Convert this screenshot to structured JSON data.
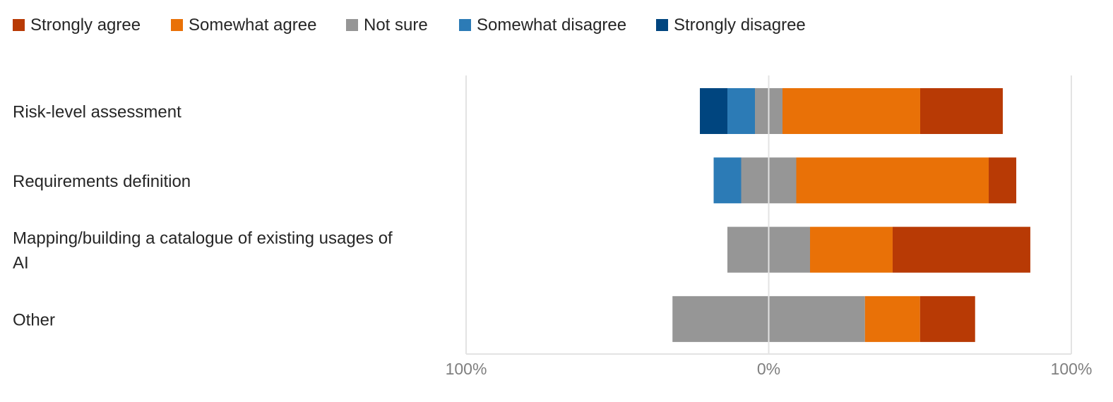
{
  "chart_data": {
    "type": "bar",
    "orientation": "horizontal",
    "stacked": "diverging",
    "title": "",
    "xlabel": "",
    "ylabel": "",
    "xlim": [
      -100,
      100
    ],
    "x_ticks": [
      {
        "value": -100,
        "label": "100%"
      },
      {
        "value": 0,
        "label": "0%"
      },
      {
        "value": 100,
        "label": "100%"
      }
    ],
    "legend_position": "top-left",
    "grid": true,
    "categories": [
      [
        "Risk-level assessment"
      ],
      [
        "Requirements definition"
      ],
      [
        "Mapping/building a catalogue of existing usages of",
        "AI"
      ],
      [
        "Other"
      ]
    ],
    "series": [
      {
        "name": "Strongly agree",
        "color": "#B83A05",
        "values": [
          27.3,
          9.1,
          45.5,
          18.2
        ]
      },
      {
        "name": "Somewhat agree",
        "color": "#E97107",
        "values": [
          45.5,
          63.6,
          27.3,
          18.2
        ]
      },
      {
        "name": "Not sure",
        "color": "#969696",
        "values": [
          9.1,
          18.2,
          27.3,
          63.6
        ]
      },
      {
        "name": "Somewhat disagree",
        "color": "#2C7BB6",
        "values": [
          9.1,
          9.1,
          0,
          0
        ]
      },
      {
        "name": "Strongly disagree",
        "color": "#00457F",
        "values": [
          9.1,
          0,
          0,
          0
        ]
      }
    ]
  }
}
